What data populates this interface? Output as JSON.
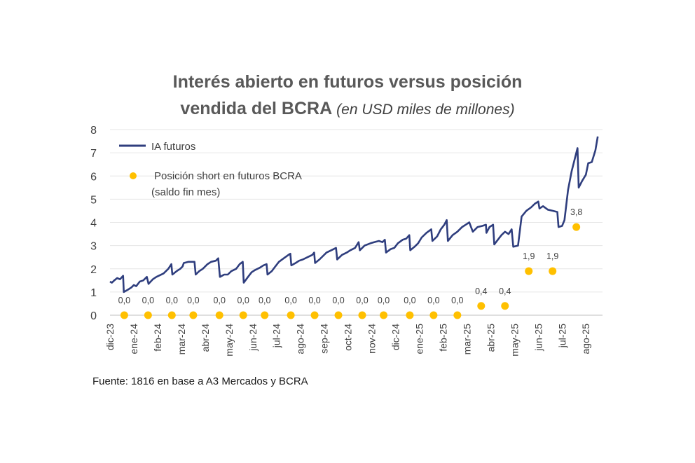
{
  "chart_data": {
    "type": "line",
    "title": "Interés abierto en futuros versus posición",
    "title_line2": "vendida del BCRA",
    "subtitle": "(en USD miles de millones)",
    "ylim": [
      0,
      8
    ],
    "yticks": [
      "0",
      "1",
      "2",
      "3",
      "4",
      "5",
      "6",
      "7",
      "8"
    ],
    "x_ticks": [
      "dic-23",
      "ene-24",
      "feb-24",
      "mar-24",
      "abr-24",
      "may-24",
      "jun-24",
      "jul-24",
      "ago-24",
      "sep-24",
      "oct-24",
      "nov-24",
      "dic-24",
      "ene-25",
      "feb-25",
      "mar-25",
      "abr-25",
      "may-25",
      "jun-25",
      "jul-25",
      "ago-25"
    ],
    "grid": true,
    "legend_placement": "top-left",
    "series": [
      {
        "name": "IA futuros",
        "color": "#2F3E7E",
        "points": [
          [
            0.0,
            1.45
          ],
          [
            0.08,
            1.4
          ],
          [
            0.18,
            1.5
          ],
          [
            0.3,
            1.6
          ],
          [
            0.42,
            1.55
          ],
          [
            0.55,
            1.7
          ],
          [
            0.58,
            1.0
          ],
          [
            0.75,
            1.1
          ],
          [
            0.9,
            1.2
          ],
          [
            1.0,
            1.3
          ],
          [
            1.1,
            1.25
          ],
          [
            1.25,
            1.45
          ],
          [
            1.4,
            1.5
          ],
          [
            1.55,
            1.65
          ],
          [
            1.62,
            1.35
          ],
          [
            1.8,
            1.55
          ],
          [
            1.95,
            1.65
          ],
          [
            2.05,
            1.7
          ],
          [
            2.25,
            1.8
          ],
          [
            2.45,
            2.0
          ],
          [
            2.58,
            2.2
          ],
          [
            2.62,
            1.75
          ],
          [
            2.8,
            1.9
          ],
          [
            2.95,
            2.0
          ],
          [
            3.05,
            2.1
          ],
          [
            3.1,
            2.25
          ],
          [
            3.3,
            2.3
          ],
          [
            3.55,
            2.3
          ],
          [
            3.6,
            1.75
          ],
          [
            3.75,
            1.9
          ],
          [
            3.9,
            2.0
          ],
          [
            4.1,
            2.2
          ],
          [
            4.25,
            2.3
          ],
          [
            4.45,
            2.35
          ],
          [
            4.55,
            2.45
          ],
          [
            4.62,
            1.65
          ],
          [
            4.8,
            1.75
          ],
          [
            4.95,
            1.75
          ],
          [
            5.1,
            1.9
          ],
          [
            5.3,
            2.0
          ],
          [
            5.45,
            2.2
          ],
          [
            5.58,
            2.3
          ],
          [
            5.62,
            1.4
          ],
          [
            5.8,
            1.65
          ],
          [
            5.95,
            1.85
          ],
          [
            6.1,
            1.95
          ],
          [
            6.3,
            2.05
          ],
          [
            6.45,
            2.15
          ],
          [
            6.58,
            2.2
          ],
          [
            6.62,
            1.75
          ],
          [
            6.8,
            1.9
          ],
          [
            6.95,
            2.1
          ],
          [
            7.1,
            2.3
          ],
          [
            7.3,
            2.45
          ],
          [
            7.5,
            2.6
          ],
          [
            7.58,
            2.65
          ],
          [
            7.62,
            2.15
          ],
          [
            7.8,
            2.25
          ],
          [
            7.95,
            2.35
          ],
          [
            8.1,
            2.4
          ],
          [
            8.3,
            2.5
          ],
          [
            8.5,
            2.6
          ],
          [
            8.58,
            2.7
          ],
          [
            8.62,
            2.25
          ],
          [
            8.8,
            2.4
          ],
          [
            8.95,
            2.55
          ],
          [
            9.1,
            2.7
          ],
          [
            9.3,
            2.8
          ],
          [
            9.5,
            2.9
          ],
          [
            9.55,
            2.4
          ],
          [
            9.75,
            2.6
          ],
          [
            9.95,
            2.7
          ],
          [
            10.1,
            2.8
          ],
          [
            10.3,
            2.9
          ],
          [
            10.45,
            3.15
          ],
          [
            10.5,
            2.8
          ],
          [
            10.7,
            3.0
          ],
          [
            10.95,
            3.1
          ],
          [
            11.1,
            3.15
          ],
          [
            11.3,
            3.2
          ],
          [
            11.45,
            3.15
          ],
          [
            11.55,
            3.25
          ],
          [
            11.6,
            2.7
          ],
          [
            11.8,
            2.85
          ],
          [
            11.95,
            2.9
          ],
          [
            12.1,
            3.1
          ],
          [
            12.3,
            3.25
          ],
          [
            12.45,
            3.3
          ],
          [
            12.58,
            3.45
          ],
          [
            12.62,
            2.8
          ],
          [
            12.8,
            2.95
          ],
          [
            12.95,
            3.1
          ],
          [
            13.1,
            3.35
          ],
          [
            13.3,
            3.55
          ],
          [
            13.5,
            3.7
          ],
          [
            13.55,
            3.2
          ],
          [
            13.75,
            3.4
          ],
          [
            13.9,
            3.7
          ],
          [
            14.05,
            3.9
          ],
          [
            14.15,
            4.1
          ],
          [
            14.2,
            3.2
          ],
          [
            14.4,
            3.45
          ],
          [
            14.6,
            3.6
          ],
          [
            14.8,
            3.8
          ],
          [
            14.95,
            3.9
          ],
          [
            15.1,
            4.0
          ],
          [
            15.25,
            3.6
          ],
          [
            15.45,
            3.8
          ],
          [
            15.65,
            3.85
          ],
          [
            15.8,
            3.9
          ],
          [
            15.82,
            3.55
          ],
          [
            15.95,
            3.8
          ],
          [
            16.1,
            3.9
          ],
          [
            16.15,
            3.05
          ],
          [
            16.3,
            3.25
          ],
          [
            16.45,
            3.45
          ],
          [
            16.6,
            3.6
          ],
          [
            16.75,
            3.5
          ],
          [
            16.88,
            3.7
          ],
          [
            16.95,
            2.95
          ],
          [
            17.15,
            3.0
          ],
          [
            17.3,
            4.25
          ],
          [
            17.5,
            4.5
          ],
          [
            17.7,
            4.65
          ],
          [
            17.85,
            4.8
          ],
          [
            18.0,
            4.9
          ],
          [
            18.05,
            4.6
          ],
          [
            18.2,
            4.7
          ],
          [
            18.4,
            4.55
          ],
          [
            18.6,
            4.5
          ],
          [
            18.8,
            4.45
          ],
          [
            18.85,
            3.8
          ],
          [
            19.0,
            3.85
          ],
          [
            19.1,
            4.1
          ],
          [
            19.25,
            5.4
          ],
          [
            19.4,
            6.2
          ],
          [
            19.55,
            6.8
          ],
          [
            19.65,
            7.2
          ],
          [
            19.7,
            5.5
          ],
          [
            19.85,
            5.8
          ],
          [
            20.0,
            6.05
          ],
          [
            20.1,
            6.55
          ],
          [
            20.25,
            6.6
          ],
          [
            20.4,
            7.1
          ],
          [
            20.5,
            7.7
          ]
        ]
      },
      {
        "name": "Posición short en futuros BCRA",
        "name_line2": "(saldo fin mes)",
        "color": "#FFC000",
        "points": [
          [
            0.6,
            0.0
          ],
          [
            1.6,
            0.0
          ],
          [
            2.6,
            0.0
          ],
          [
            3.5,
            0.0
          ],
          [
            4.6,
            0.0
          ],
          [
            5.6,
            0.0
          ],
          [
            6.5,
            0.0
          ],
          [
            7.6,
            0.0
          ],
          [
            8.6,
            0.0
          ],
          [
            9.6,
            0.0
          ],
          [
            10.6,
            0.0
          ],
          [
            11.5,
            0.0
          ],
          [
            12.6,
            0.0
          ],
          [
            13.6,
            0.0
          ],
          [
            14.6,
            0.0
          ],
          [
            15.6,
            0.4
          ],
          [
            16.6,
            0.4
          ],
          [
            17.6,
            1.9
          ],
          [
            18.6,
            1.9
          ],
          [
            19.6,
            3.8
          ]
        ],
        "labels": [
          "0,0",
          "0,0",
          "0,0",
          "0,0",
          "0,0",
          "0,0",
          "0,0",
          "0,0",
          "0,0",
          "0,0",
          "0,0",
          "0,0",
          "0,0",
          "0,0",
          "0,0",
          "0,4",
          "0,4",
          "1,9",
          "1,9",
          "3,8"
        ]
      }
    ]
  },
  "source": "Fuente: 1816 en base a A3 Mercados y BCRA"
}
